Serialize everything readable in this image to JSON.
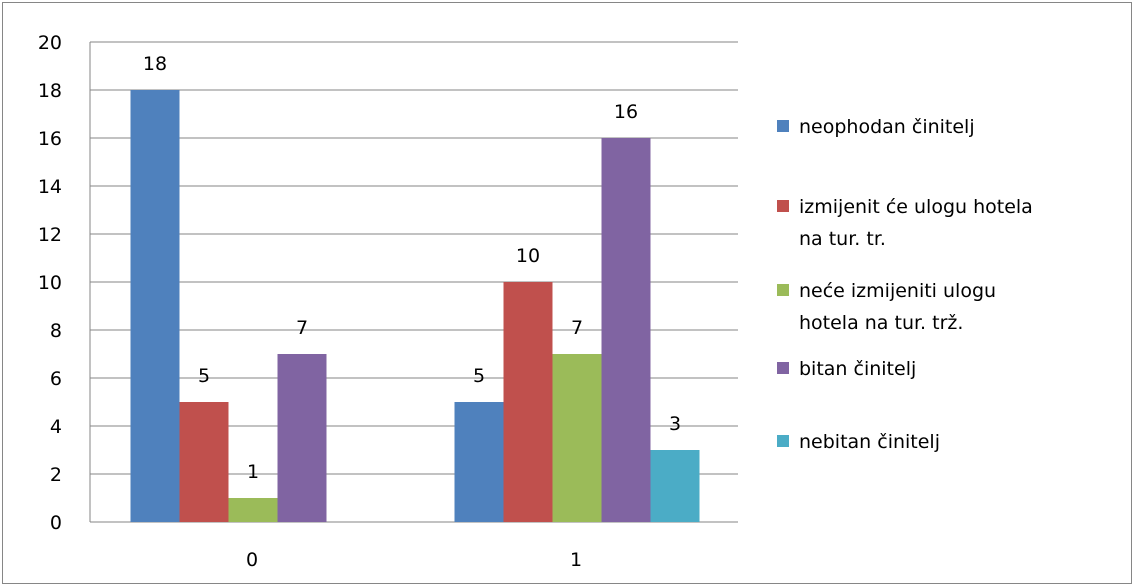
{
  "chart_data": {
    "type": "bar",
    "categories": [
      "0",
      "1"
    ],
    "series": [
      {
        "name": "neophodan činitelj",
        "legend_lines": [
          "neophodan činitelj"
        ],
        "color": "#4F81BD",
        "values": [
          18,
          5
        ]
      },
      {
        "name": "izmijenit će ulogu hotela na tur. tr.",
        "legend_lines": [
          "izmijenit će ulogu hotela",
          "na tur. tr."
        ],
        "color": "#C0504D",
        "values": [
          5,
          10
        ]
      },
      {
        "name": "neće izmijeniti ulogu hotela na tur. trž.",
        "legend_lines": [
          "neće izmijeniti ulogu",
          "hotela na tur. trž."
        ],
        "color": "#9BBB59",
        "values": [
          1,
          7
        ]
      },
      {
        "name": "bitan činitelj",
        "legend_lines": [
          "bitan činitelj"
        ],
        "color": "#8064A2",
        "values": [
          7,
          16
        ]
      },
      {
        "name": "nebitan činitelj",
        "legend_lines": [
          "nebitan činitelj"
        ],
        "color": "#4BACC6",
        "values": [
          null,
          3
        ]
      }
    ],
    "data_labels": [
      [
        "18",
        "5",
        "1",
        "7",
        null
      ],
      [
        "5",
        "10",
        "7",
        "16",
        "3"
      ]
    ],
    "yticks": [
      "0",
      "2",
      "4",
      "6",
      "8",
      "10",
      "12",
      "14",
      "16",
      "18",
      "20"
    ],
    "ylim": [
      0,
      20
    ],
    "grid": true,
    "legend_position": "right",
    "title": "",
    "xlabel": "",
    "ylabel": ""
  }
}
